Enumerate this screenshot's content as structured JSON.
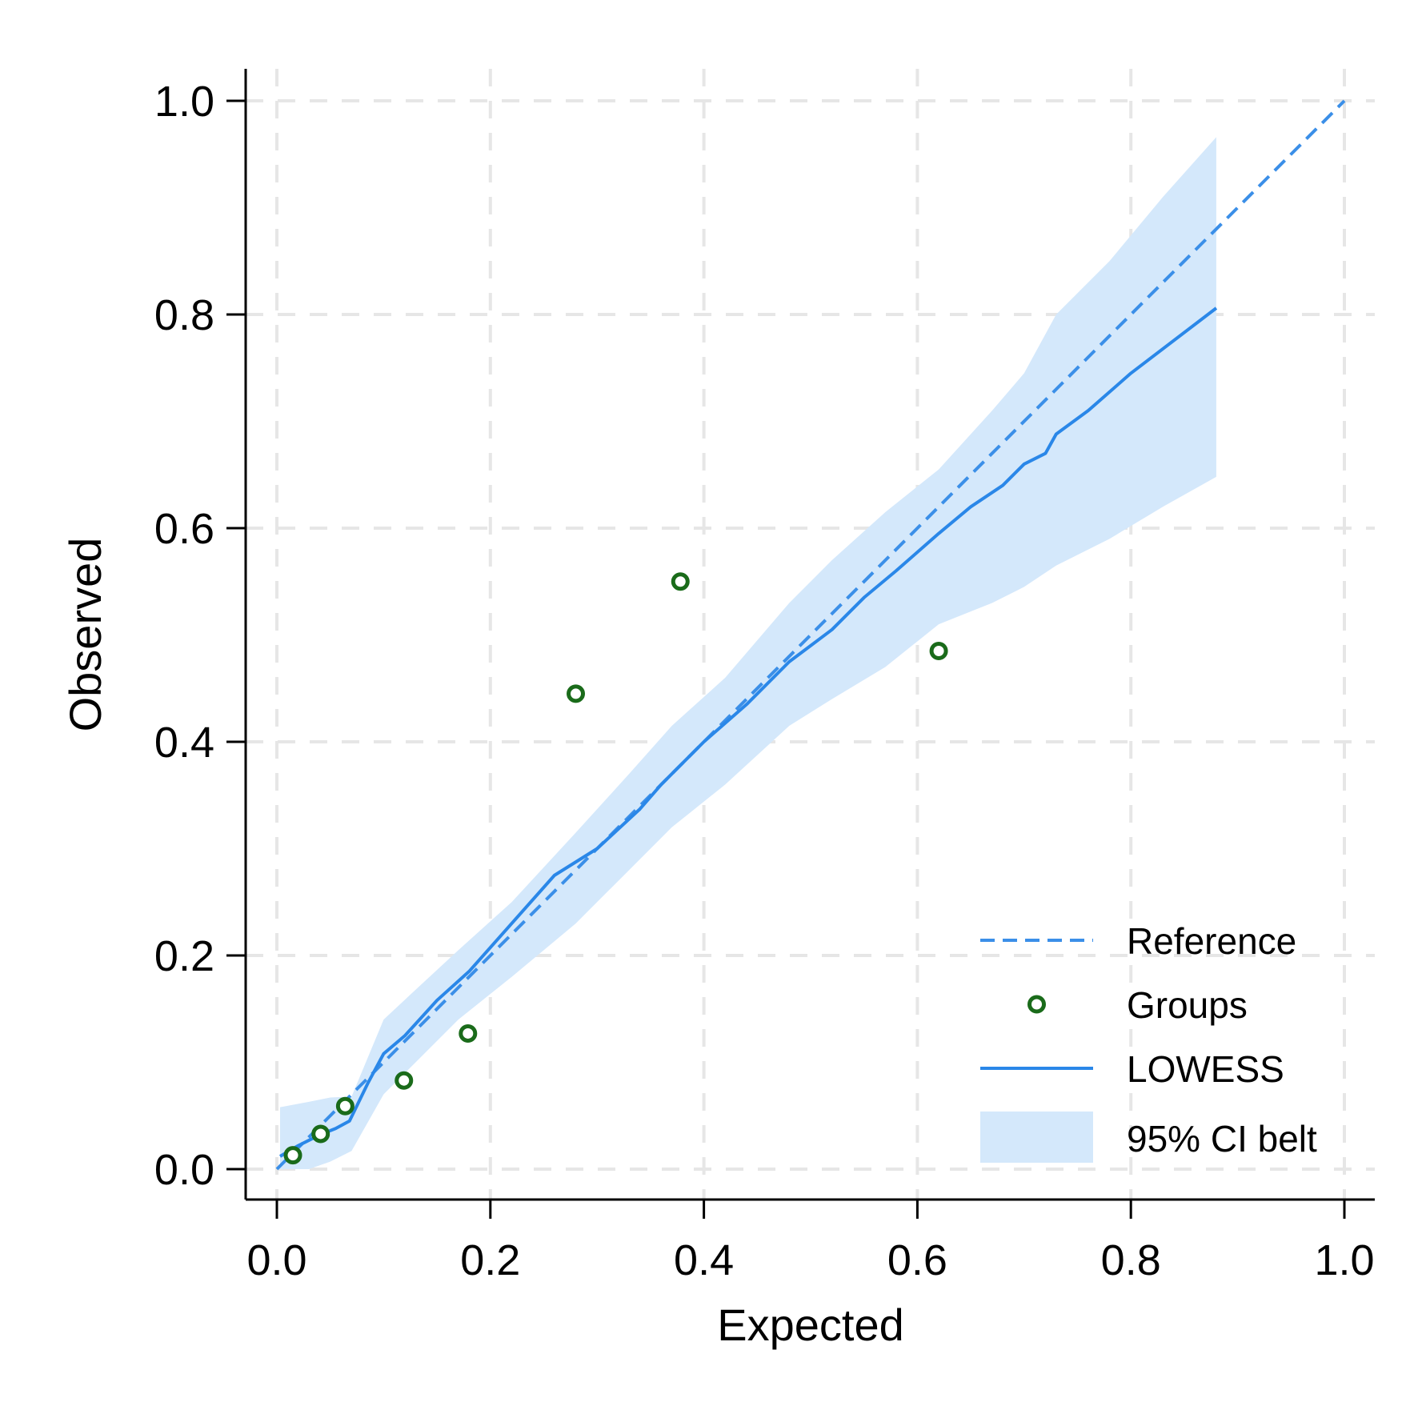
{
  "chart_data": {
    "type": "line",
    "xlabel": "Expected",
    "ylabel": "Observed",
    "xlim": [
      0,
      1
    ],
    "ylim": [
      0,
      1
    ],
    "x_ticks": [
      0.0,
      0.2,
      0.4,
      0.6,
      0.8,
      1.0
    ],
    "y_ticks": [
      0.0,
      0.2,
      0.4,
      0.6,
      0.8,
      1.0
    ],
    "x_tick_labels": [
      "0.0",
      "0.2",
      "0.4",
      "0.6",
      "0.8",
      "1.0"
    ],
    "y_tick_labels": [
      "0.0",
      "0.2",
      "0.4",
      "0.6",
      "0.8",
      "1.0"
    ],
    "grid": true,
    "legend_position": "bottom-right",
    "legend": [
      {
        "label": "Reference",
        "kind": "dashed-line"
      },
      {
        "label": "Groups",
        "kind": "marker"
      },
      {
        "label": "LOWESS",
        "kind": "line"
      },
      {
        "label": "95% CI belt",
        "kind": "band"
      }
    ],
    "colors": {
      "reference": "#3b8fe8",
      "groups": "#1a6b1a",
      "lowess": "#2a87e8",
      "ci_belt": "#d4e8fb",
      "grid": "#e6e6e6",
      "axis": "#000000"
    },
    "series": [
      {
        "name": "Reference",
        "x": [
          0.0,
          1.0
        ],
        "y": [
          0.0,
          1.0
        ]
      },
      {
        "name": "Groups",
        "x": [
          0.015,
          0.041,
          0.064,
          0.119,
          0.179,
          0.28,
          0.378,
          0.62
        ],
        "y": [
          0.013,
          0.033,
          0.059,
          0.083,
          0.127,
          0.445,
          0.55,
          0.485
        ]
      },
      {
        "name": "LOWESS",
        "x": [
          0.003,
          0.02,
          0.04,
          0.055,
          0.068,
          0.085,
          0.1,
          0.12,
          0.15,
          0.18,
          0.22,
          0.26,
          0.3,
          0.34,
          0.36,
          0.37,
          0.4,
          0.44,
          0.48,
          0.5,
          0.52,
          0.55,
          0.58,
          0.62,
          0.65,
          0.68,
          0.7,
          0.72,
          0.73,
          0.76,
          0.8,
          0.88
        ],
        "y": [
          0.012,
          0.022,
          0.032,
          0.038,
          0.045,
          0.08,
          0.108,
          0.125,
          0.158,
          0.185,
          0.23,
          0.275,
          0.3,
          0.337,
          0.36,
          0.37,
          0.4,
          0.435,
          0.475,
          0.49,
          0.505,
          0.535,
          0.56,
          0.595,
          0.62,
          0.64,
          0.66,
          0.67,
          0.688,
          0.71,
          0.745,
          0.806
        ]
      },
      {
        "name": "95% CI belt",
        "x": [
          0.003,
          0.03,
          0.05,
          0.07,
          0.1,
          0.13,
          0.17,
          0.22,
          0.28,
          0.33,
          0.37,
          0.42,
          0.48,
          0.52,
          0.57,
          0.62,
          0.67,
          0.7,
          0.73,
          0.78,
          0.83,
          0.88
        ],
        "lower": [
          0.0,
          0.0,
          0.007,
          0.017,
          0.07,
          0.1,
          0.14,
          0.18,
          0.23,
          0.28,
          0.32,
          0.36,
          0.415,
          0.44,
          0.47,
          0.51,
          0.53,
          0.545,
          0.565,
          0.59,
          0.62,
          0.648
        ],
        "upper": [
          0.058,
          0.063,
          0.067,
          0.068,
          0.14,
          0.168,
          0.205,
          0.25,
          0.315,
          0.37,
          0.415,
          0.46,
          0.53,
          0.57,
          0.615,
          0.655,
          0.71,
          0.745,
          0.8,
          0.85,
          0.91,
          0.966
        ]
      }
    ]
  }
}
